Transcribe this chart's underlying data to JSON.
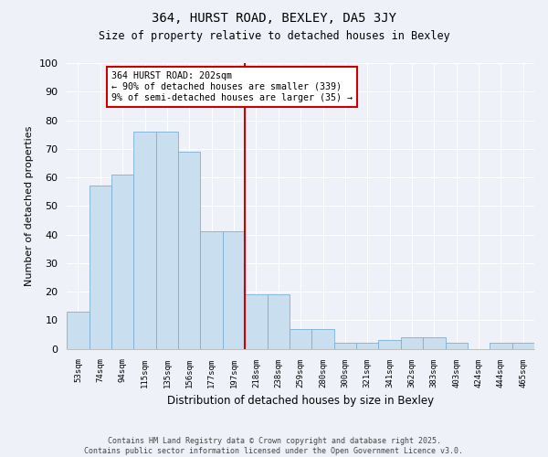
{
  "title1": "364, HURST ROAD, BEXLEY, DA5 3JY",
  "title2": "Size of property relative to detached houses in Bexley",
  "xlabel": "Distribution of detached houses by size in Bexley",
  "ylabel": "Number of detached properties",
  "categories": [
    "53sqm",
    "74sqm",
    "94sqm",
    "115sqm",
    "135sqm",
    "156sqm",
    "177sqm",
    "197sqm",
    "218sqm",
    "238sqm",
    "259sqm",
    "280sqm",
    "300sqm",
    "321sqm",
    "341sqm",
    "362sqm",
    "383sqm",
    "403sqm",
    "424sqm",
    "444sqm",
    "465sqm"
  ],
  "values": [
    13,
    57,
    61,
    76,
    76,
    69,
    41,
    41,
    19,
    19,
    7,
    7,
    2,
    2,
    3,
    4,
    4,
    2,
    0,
    2,
    2
  ],
  "bar_color": "#c9dff0",
  "bar_edge_color": "#7bafd4",
  "vline_x_idx": 7,
  "vline_color": "#cc0000",
  "annotation_text": "364 HURST ROAD: 202sqm\n← 90% of detached houses are smaller (339)\n9% of semi-detached houses are larger (35) →",
  "annotation_box_color": "#ffffff",
  "annotation_box_edge": "#cc0000",
  "ylim": [
    0,
    100
  ],
  "yticks": [
    0,
    10,
    20,
    30,
    40,
    50,
    60,
    70,
    80,
    90,
    100
  ],
  "background_color": "#eef2f8",
  "grid_color": "#ffffff",
  "footer1": "Contains HM Land Registry data © Crown copyright and database right 2025.",
  "footer2": "Contains public sector information licensed under the Open Government Licence v3.0."
}
